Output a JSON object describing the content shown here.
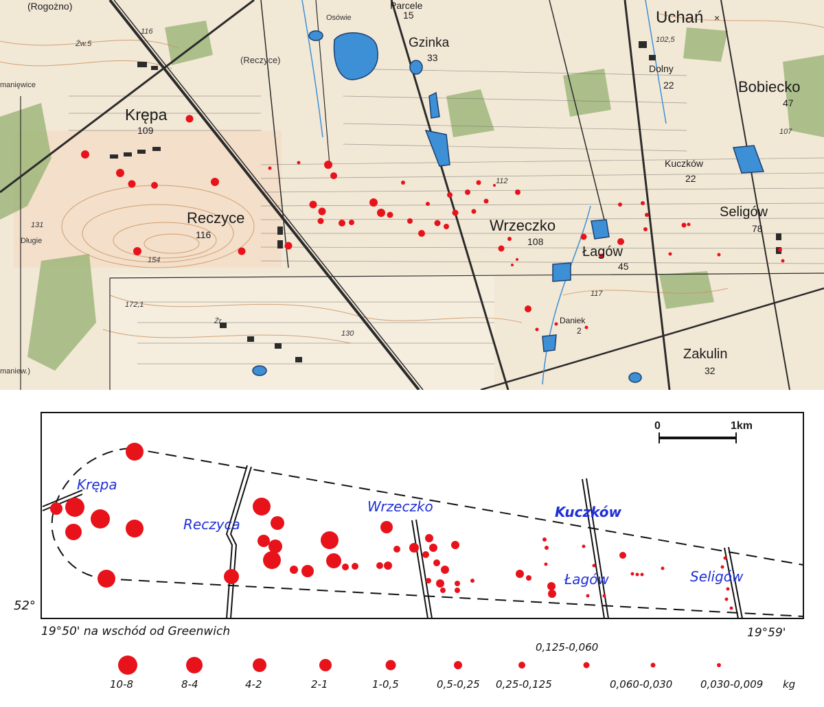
{
  "top_map": {
    "places": [
      {
        "id": "rogozno",
        "name": "(Rogożno)",
        "elev": ""
      },
      {
        "id": "parcele",
        "name": "Parcele",
        "elev": "15"
      },
      {
        "id": "osowie",
        "name": "Osówie",
        "elev": ""
      },
      {
        "id": "uchan",
        "name": "Uchań",
        "elev": ""
      },
      {
        "id": "gzinka",
        "name": "Gzinka",
        "elev": "33"
      },
      {
        "id": "reczyce-small",
        "name": "(Reczyce)",
        "elev": ""
      },
      {
        "id": "dolny",
        "name": "Dolny",
        "elev": "22"
      },
      {
        "id": "bobiecko",
        "name": "Bobiecko",
        "elev": "47"
      },
      {
        "id": "krepa",
        "name": "Krępa",
        "elev": "109"
      },
      {
        "id": "kuczkow",
        "name": "Kuczków",
        "elev": "22"
      },
      {
        "id": "seligow",
        "name": "Seligów",
        "elev": "78"
      },
      {
        "id": "reczyce",
        "name": "Reczyce",
        "elev": "116"
      },
      {
        "id": "wrzeczko",
        "name": "Wrzeczko",
        "elev": "108"
      },
      {
        "id": "lagow",
        "name": "Łagów",
        "elev": "45"
      },
      {
        "id": "dlugie",
        "name": "Długie",
        "elev": ""
      },
      {
        "id": "daniek",
        "name": "Daniek",
        "elev": "2"
      },
      {
        "id": "zakulin",
        "name": "Zakulin",
        "elev": "32"
      },
      {
        "id": "maniewice",
        "name": "manięwice",
        "elev": ""
      },
      {
        "id": "maniew",
        "name": "maniew.)",
        "elev": ""
      }
    ],
    "spot_heights": [
      "116",
      "131",
      "154",
      "172,1",
      "130",
      "112",
      "102,5",
      "107",
      "117",
      "Żw.5",
      "Żr."
    ],
    "colors": {
      "paper": "#f2e8d6",
      "water": "#3d8fd6",
      "meteorite": "#e8121b",
      "road": "#2b2b2b",
      "contour": "#c98f5a",
      "woods": "#8fae6a"
    }
  },
  "bottom_map": {
    "scale_start": "0",
    "scale_end": "1km",
    "lat_label": "52°",
    "lon_left": "19°50' na wschód od Greenwich",
    "lon_right": "19°59'",
    "places": [
      {
        "id": "krepa",
        "name": "Krępa"
      },
      {
        "id": "reczyca",
        "name": "Reczyca"
      },
      {
        "id": "wrzeczko",
        "name": "Wrzeczko"
      },
      {
        "id": "kuczkow",
        "name": "Kuczków"
      },
      {
        "id": "lagow",
        "name": "Łagów"
      },
      {
        "id": "seligow",
        "name": "Seligów"
      }
    ],
    "legend": {
      "above_label": "0,125-0,060",
      "unit": "kg",
      "classes": [
        {
          "label": "10-8"
        },
        {
          "label": "8-4"
        },
        {
          "label": "4-2"
        },
        {
          "label": "2-1"
        },
        {
          "label": "1-0,5"
        },
        {
          "label": "0,5-0,25"
        },
        {
          "label": "0,25-0,125"
        },
        {
          "label": ""
        },
        {
          "label": "0,060-0,030"
        },
        {
          "label": "0,030-0,009"
        }
      ]
    }
  }
}
